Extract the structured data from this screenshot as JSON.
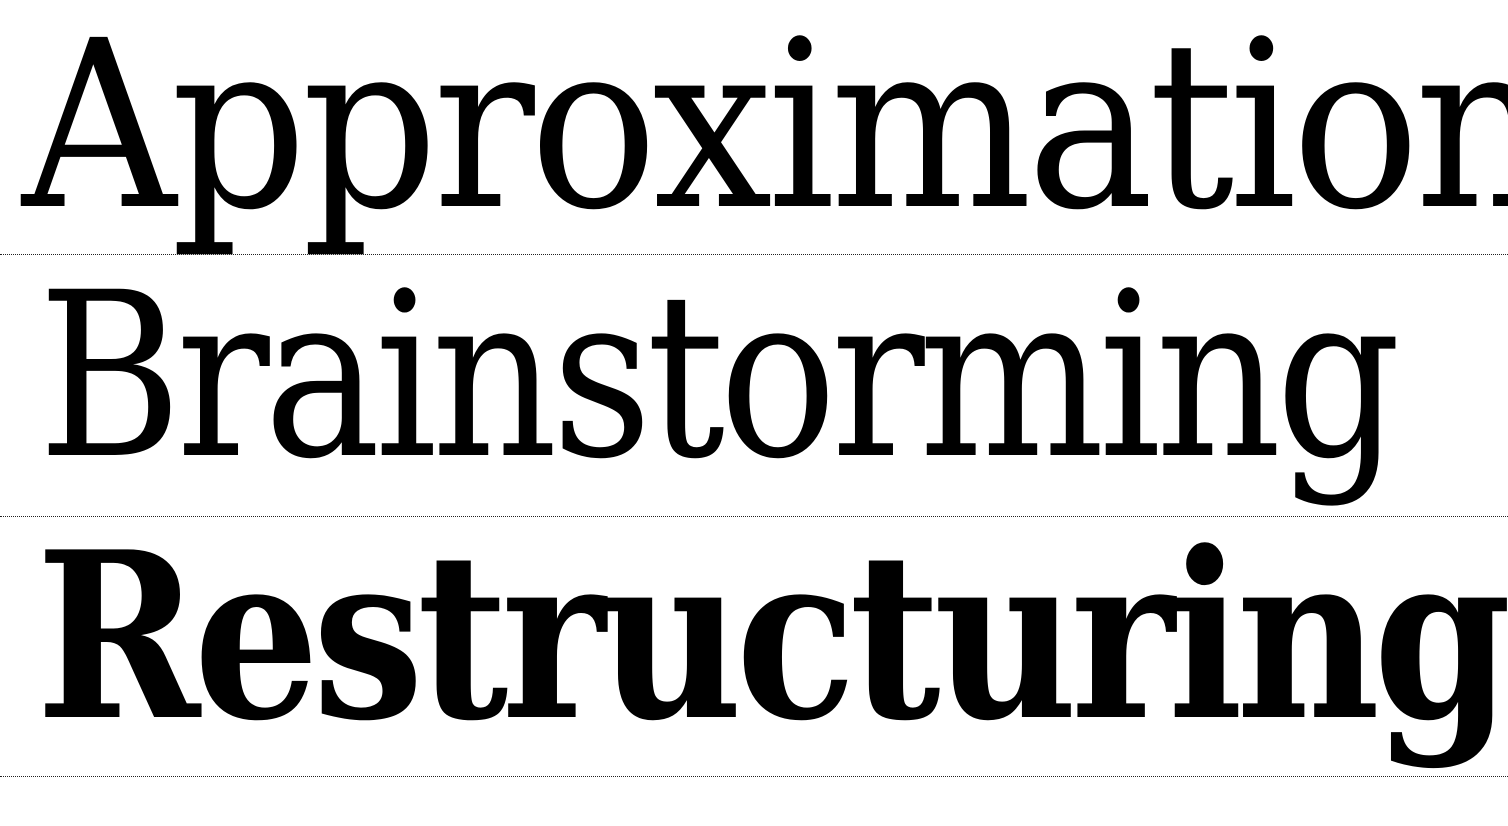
{
  "specimen_words": [
    {
      "text": "Approximation",
      "weight": "light"
    },
    {
      "text": "Brainstorming",
      "weight": "regular"
    },
    {
      "text": "Restructuring",
      "weight": "bold"
    }
  ],
  "colors": {
    "text": "#000000",
    "background": "#ffffff",
    "rule": "#222222"
  }
}
